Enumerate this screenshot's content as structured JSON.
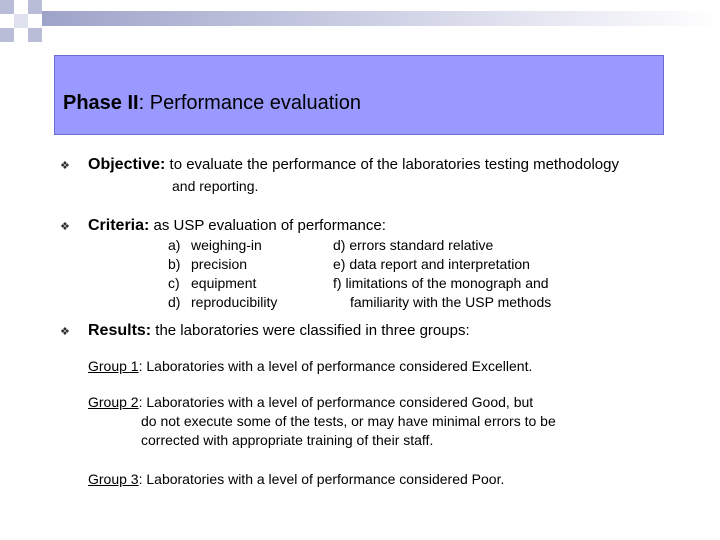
{
  "slide": {
    "title_bold": "Phase II",
    "title_rest": ": Performance evaluation",
    "bullet_glyph": "❖",
    "objective": {
      "label": "Objective:",
      "text_line1": " to evaluate the performance of the laboratories testing methodology",
      "text_line2": "and reporting."
    },
    "criteria": {
      "label": "Criteria:",
      "text": " as USP evaluation of performance:",
      "items_left": [
        {
          "letter": "a)",
          "text": "weighing-in"
        },
        {
          "letter": "b)",
          "text": "precision"
        },
        {
          "letter": "c)",
          "text": "equipment"
        },
        {
          "letter": "d)",
          "text": "reproducibility"
        }
      ],
      "items_right": [
        "d) errors standard relative",
        "e) data report and interpretation",
        "f) limitations of the monograph and",
        "familiarity with the USP methods"
      ]
    },
    "results": {
      "label": "Results:",
      "text": " the laboratories were classified in three groups:",
      "group1": {
        "label": "Group 1",
        "line1": ": Laboratories with a level of performance considered Excellent."
      },
      "group2": {
        "label": "Group 2",
        "line1": ": Laboratories with a level of performance considered Good, but",
        "line2": "do not execute some of the tests, or may have minimal errors to be",
        "line3": "corrected with appropriate training of their staff."
      },
      "group3": {
        "label": "Group 3",
        "line1": ": Laboratories with a level of performance considered Poor."
      }
    }
  },
  "colors": {
    "title_box": "#9999ff",
    "accent_squares": "#b9bdd8"
  }
}
